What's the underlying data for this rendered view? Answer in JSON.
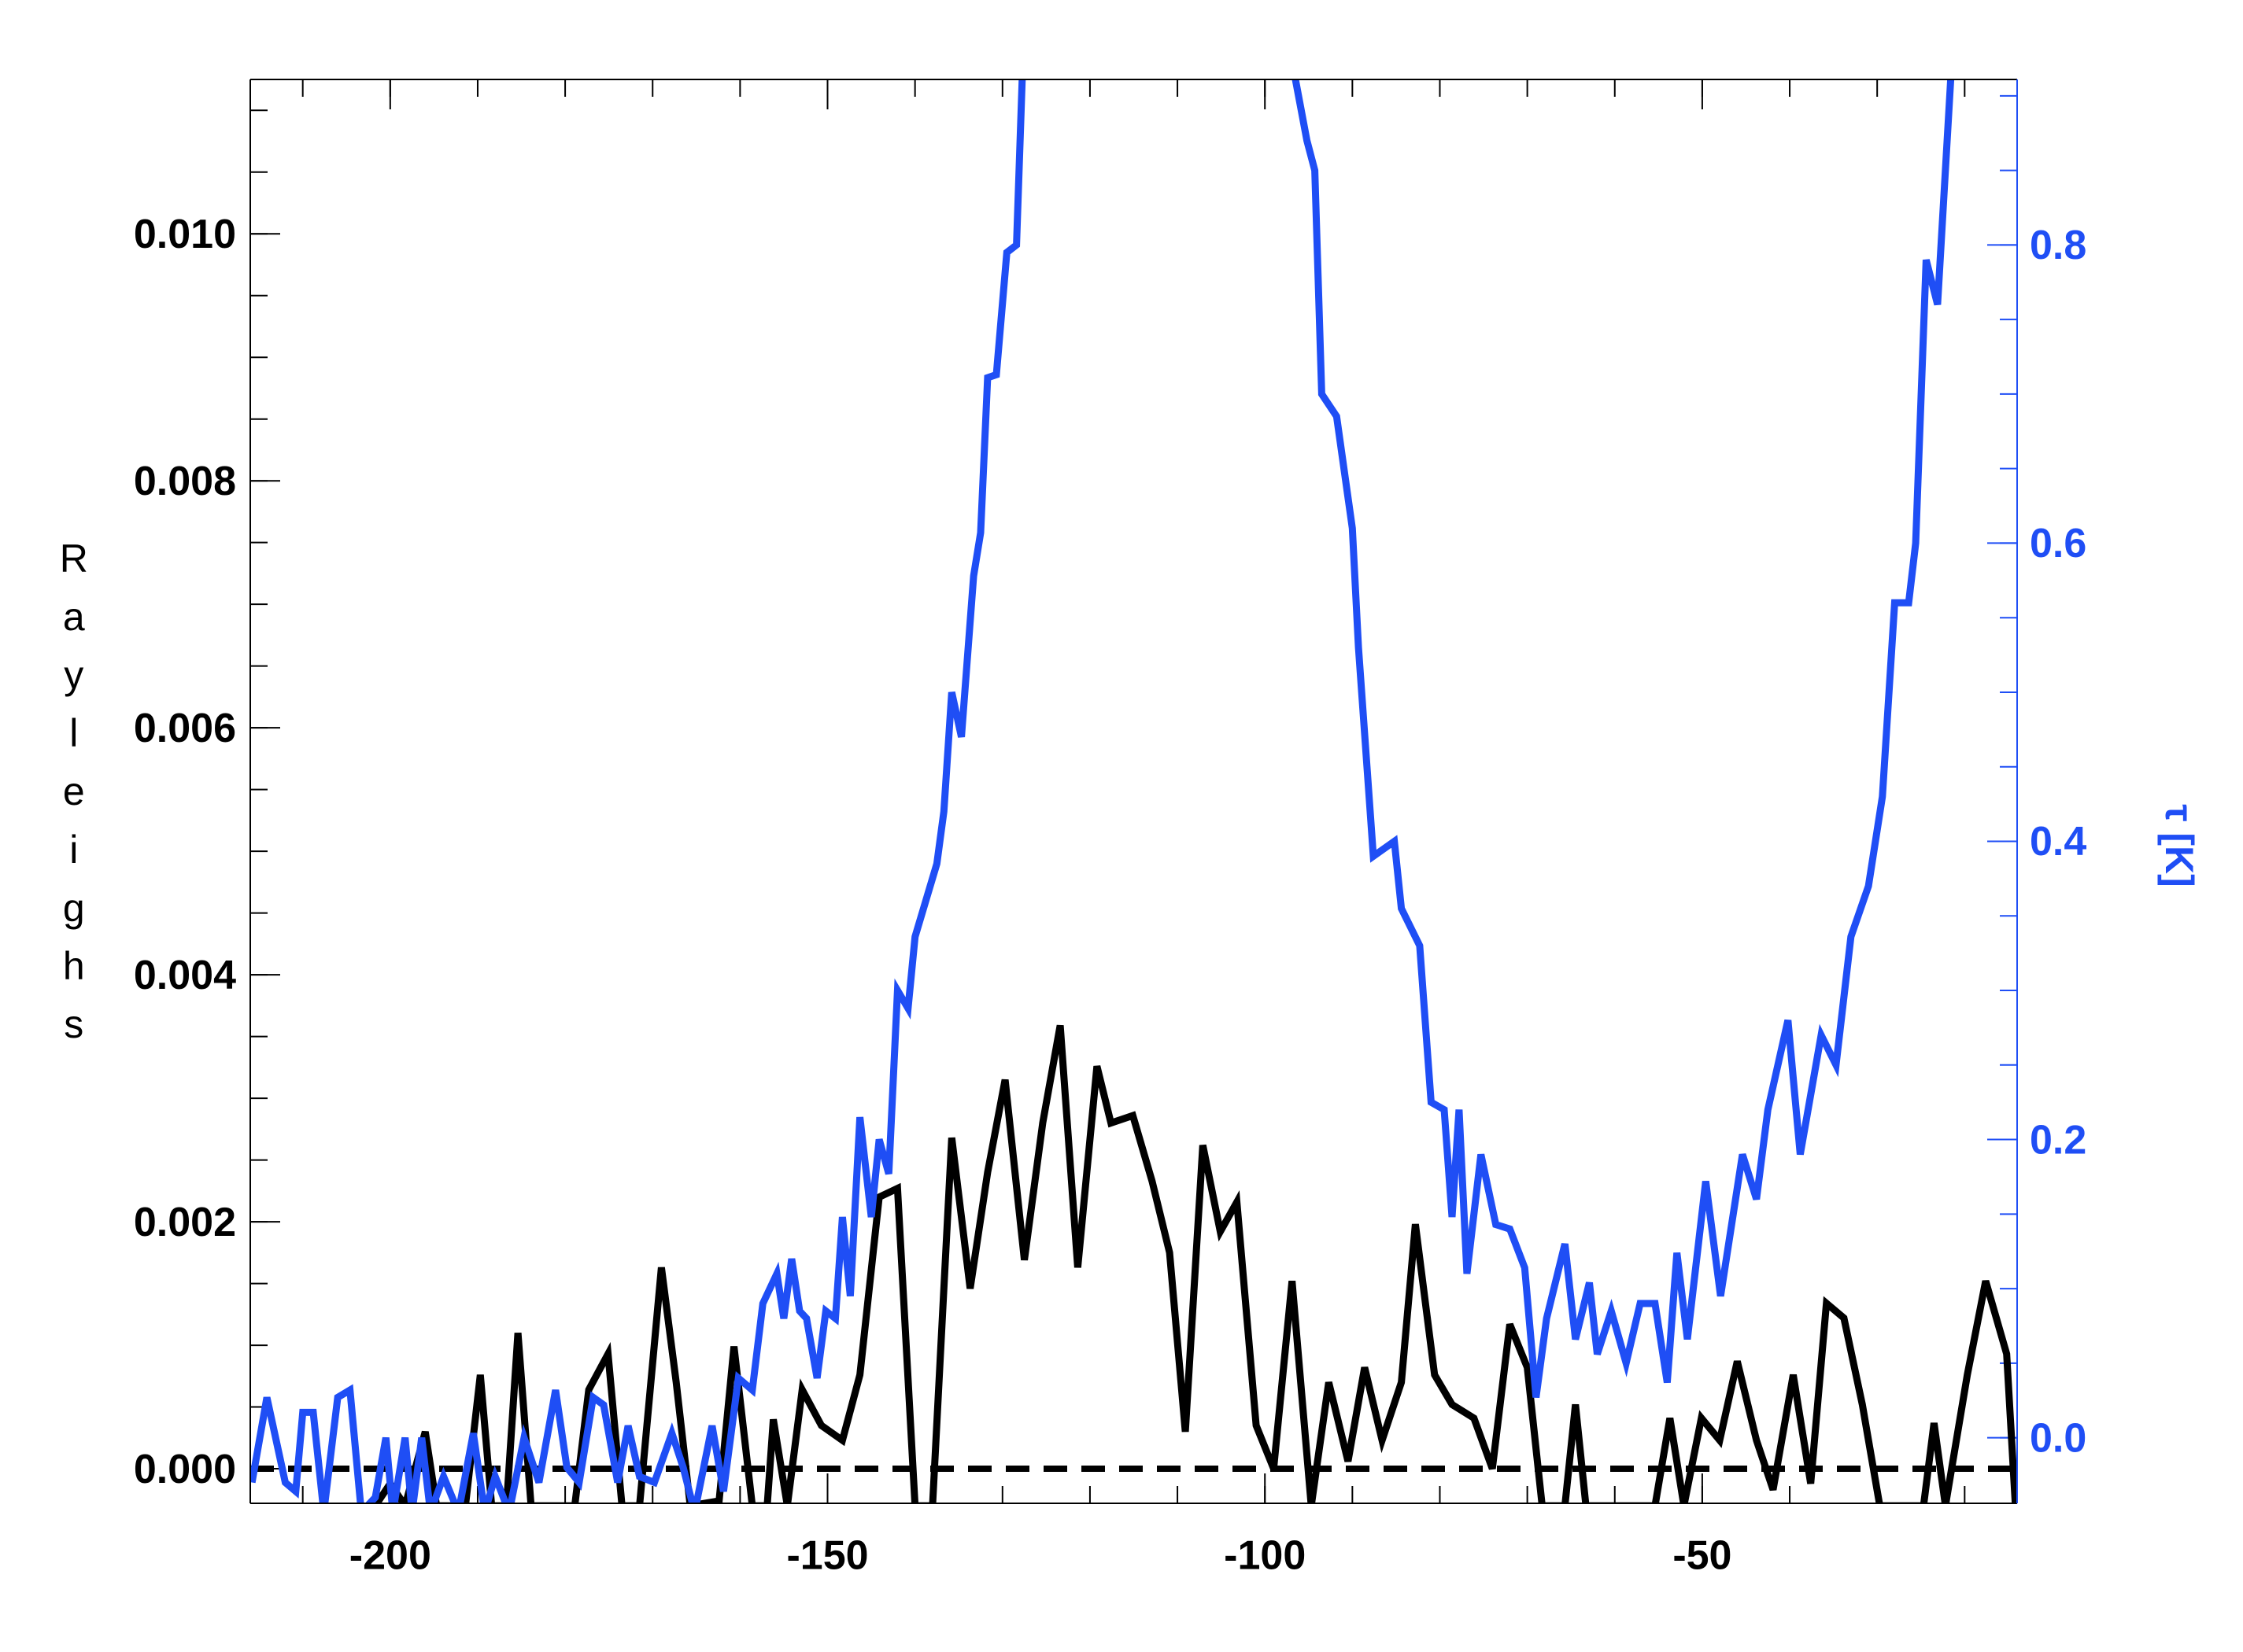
{
  "chart_data": {
    "type": "line",
    "y_label": "Rayleighs",
    "y2_label": "τ [K]",
    "xlim": [
      -216,
      -14
    ],
    "ylim": [
      -0.00028,
      0.01125
    ],
    "y2lim": [
      -0.044,
      0.911
    ],
    "xticks": [
      -200,
      -150,
      -100,
      -50
    ],
    "yticks": [
      {
        "value": 0,
        "label": "0.000"
      },
      {
        "value": 0.002,
        "label": "0.002"
      },
      {
        "value": 0.004,
        "label": "0.004"
      },
      {
        "value": 0.006,
        "label": "0.006"
      },
      {
        "value": 0.008,
        "label": "0.008"
      },
      {
        "value": 0.01,
        "label": "0.010"
      }
    ],
    "y2ticks": [
      {
        "value": 0,
        "label": "0.0"
      },
      0.2,
      0.4,
      0.6,
      0.8
    ],
    "x_minor_per_major": 5,
    "y_minor_per_major": 4,
    "y2_minor_per_major": 4,
    "y2_color": "#1f4ef5",
    "reference_line": {
      "value": 0,
      "color": "#000000",
      "dashed": true
    },
    "series": [
      {
        "color": "#000000",
        "axis": "y",
        "x": [
          -201.7,
          -200,
          -198.3,
          -196,
          -194.7,
          -191.4,
          -189.7,
          -188.4,
          -186.7,
          -185.4,
          -183.9,
          -178.9,
          -177.3,
          -175.1,
          -173.5,
          -171.5,
          -169,
          -167.3,
          -165.7,
          -162.4,
          -160.7,
          -158.6,
          -156.9,
          -156.2,
          -154.6,
          -152.9,
          -150.7,
          -148.3,
          -146.3,
          -144.1,
          -142,
          -140,
          -138,
          -135.8,
          -133.7,
          -131.7,
          -129.7,
          -127.5,
          -125.4,
          -123.4,
          -121.4,
          -119.2,
          -117.6,
          -115.1,
          -112.9,
          -110.9,
          -109.1,
          -107.1,
          -105.1,
          -103.2,
          -101,
          -99,
          -96.9,
          -94.7,
          -92.7,
          -90.5,
          -88.6,
          -86.6,
          -84.4,
          -82.8,
          -80.6,
          -78.6,
          -76.1,
          -74,
          -72,
          -70,
          -68.3,
          -65.7,
          -64.5,
          -63.3,
          -55.4,
          -53.7,
          -52.1,
          -50.1,
          -48,
          -46,
          -43.8,
          -41.9,
          -39.6,
          -37.6,
          -35.8,
          -33.8,
          -31.7,
          -29.7,
          -24.7,
          -23.5,
          -22.2,
          -19.7,
          -17.6,
          -15.2,
          -14.2
        ],
        "values": [
          -0.0003,
          -0.00012,
          -0.0003,
          0.0003,
          -0.0003,
          -0.0003,
          0.00076,
          -0.0003,
          -0.0003,
          0.0011,
          -0.0003,
          -0.0003,
          0.00064,
          0.00093,
          -0.0003,
          -0.0003,
          0.00163,
          0.0007,
          -0.0003,
          -0.00026,
          0.00099,
          -0.0003,
          -0.0003,
          0.0004,
          -0.0003,
          0.00064,
          0.00035,
          0.00023,
          0.00076,
          0.0022,
          0.00227,
          -0.0003,
          -0.0003,
          0.00268,
          0.00146,
          0.0024,
          0.00315,
          0.00169,
          0.0028,
          0.00359,
          0.00163,
          0.00326,
          0.0028,
          0.00286,
          0.00233,
          0.00175,
          0.0003,
          0.00262,
          0.00192,
          0.00216,
          0.00035,
          0,
          0.00152,
          -0.0003,
          0.0007,
          6e-05,
          0.00082,
          0.00023,
          0.0007,
          0.00198,
          0.00076,
          0.00052,
          0.00041,
          0,
          0.00117,
          0.00082,
          -0.0003,
          -0.0003,
          0.00052,
          -0.0003,
          -0.0003,
          0.00041,
          -0.0003,
          0.00041,
          0.00023,
          0.00087,
          0.00023,
          -0.00017,
          0.00076,
          -0.00012,
          0.00134,
          0.00122,
          0.00052,
          -0.0003,
          -0.0003,
          0.00037,
          -0.0003,
          0.00076,
          0.00152,
          0.00093,
          -0.0003
        ]
      },
      {
        "color": "#1f4ef5",
        "axis": "y2",
        "x": [
          -215.8,
          -214.1,
          -212,
          -210.8,
          -210,
          -208.8,
          -207.6,
          -206,
          -204.6,
          -203.3,
          -201.7,
          -200.5,
          -199.7,
          -198.3,
          -197.5,
          -196.4,
          -195.4,
          -193.9,
          -192.2,
          -190.5,
          -189.2,
          -188,
          -186.4,
          -184.7,
          -183,
          -181.1,
          -179.8,
          -178.4,
          -176.8,
          -175.6,
          -174,
          -172.8,
          -171.5,
          -169.8,
          -167.8,
          -166.5,
          -165.2,
          -163.2,
          -161.9,
          -160.2,
          -158.6,
          -157.4,
          -155.8,
          -155,
          -154.1,
          -153.2,
          -152.4,
          -151.2,
          -150.2,
          -149.1,
          -148.3,
          -147.4,
          -146.3,
          -145,
          -144.1,
          -143,
          -142,
          -140.8,
          -140,
          -137.5,
          -136.7,
          -135.8,
          -134.7,
          -133.3,
          -132.5,
          -131.7,
          -130.7,
          -129.5,
          -128.4,
          -127.7,
          -112,
          -96.8,
          -95.2,
          -94.3,
          -93.5,
          -91.8,
          -90,
          -89.3,
          -87.6,
          -85.2,
          -84.4,
          -82.3,
          -81,
          -79.5,
          -78.6,
          -77.8,
          -76.9,
          -75.3,
          -73.6,
          -72,
          -70.3,
          -69,
          -67.8,
          -65.7,
          -64.5,
          -62.9,
          -62,
          -60.4,
          -58.7,
          -57.1,
          -55.4,
          -54,
          -52.9,
          -51.7,
          -49.6,
          -47.9,
          -45.4,
          -43.8,
          -42.5,
          -40.2,
          -38.8,
          -36.4,
          -34.7,
          -33,
          -31,
          -29.4,
          -28,
          -26.4,
          -25.6,
          -24.4,
          -23.1,
          -21.5
        ],
        "values": [
          -0.03,
          0.027,
          -0.03,
          -0.036,
          0.017,
          0.017,
          -0.05,
          0.027,
          0.032,
          -0.05,
          -0.04,
          0,
          -0.05,
          0,
          -0.05,
          0,
          -0.05,
          -0.026,
          -0.05,
          0.003,
          -0.05,
          -0.026,
          -0.05,
          0,
          -0.03,
          0.032,
          -0.02,
          -0.03,
          0.027,
          0.022,
          -0.03,
          0.008,
          -0.026,
          -0.03,
          0.003,
          -0.02,
          -0.05,
          0.008,
          -0.036,
          0.04,
          0.032,
          0.09,
          0.11,
          0.08,
          0.12,
          0.085,
          0.08,
          0.04,
          0.085,
          0.08,
          0.148,
          0.095,
          0.215,
          0.148,
          0.2,
          0.177,
          0.3,
          0.288,
          0.336,
          0.385,
          0.42,
          0.5,
          0.47,
          0.578,
          0.607,
          0.711,
          0.713,
          0.795,
          0.8,
          0.92,
          null,
          0.92,
          0.87,
          0.85,
          0.7,
          0.685,
          0.61,
          0.53,
          0.39,
          0.4,
          0.355,
          0.33,
          0.225,
          0.22,
          0.148,
          0.22,
          0.11,
          0.19,
          0.143,
          0.14,
          0.114,
          0.027,
          0.08,
          0.13,
          0.066,
          0.104,
          0.056,
          0.085,
          0.05,
          0.09,
          0.09,
          0.037,
          0.124,
          0.066,
          0.172,
          0.095,
          0.19,
          0.16,
          0.22,
          0.28,
          0.19,
          0.27,
          0.25,
          0.336,
          0.37,
          0.43,
          0.56,
          0.56,
          0.6,
          0.79,
          0.76,
          0.92
        ]
      }
    ]
  }
}
